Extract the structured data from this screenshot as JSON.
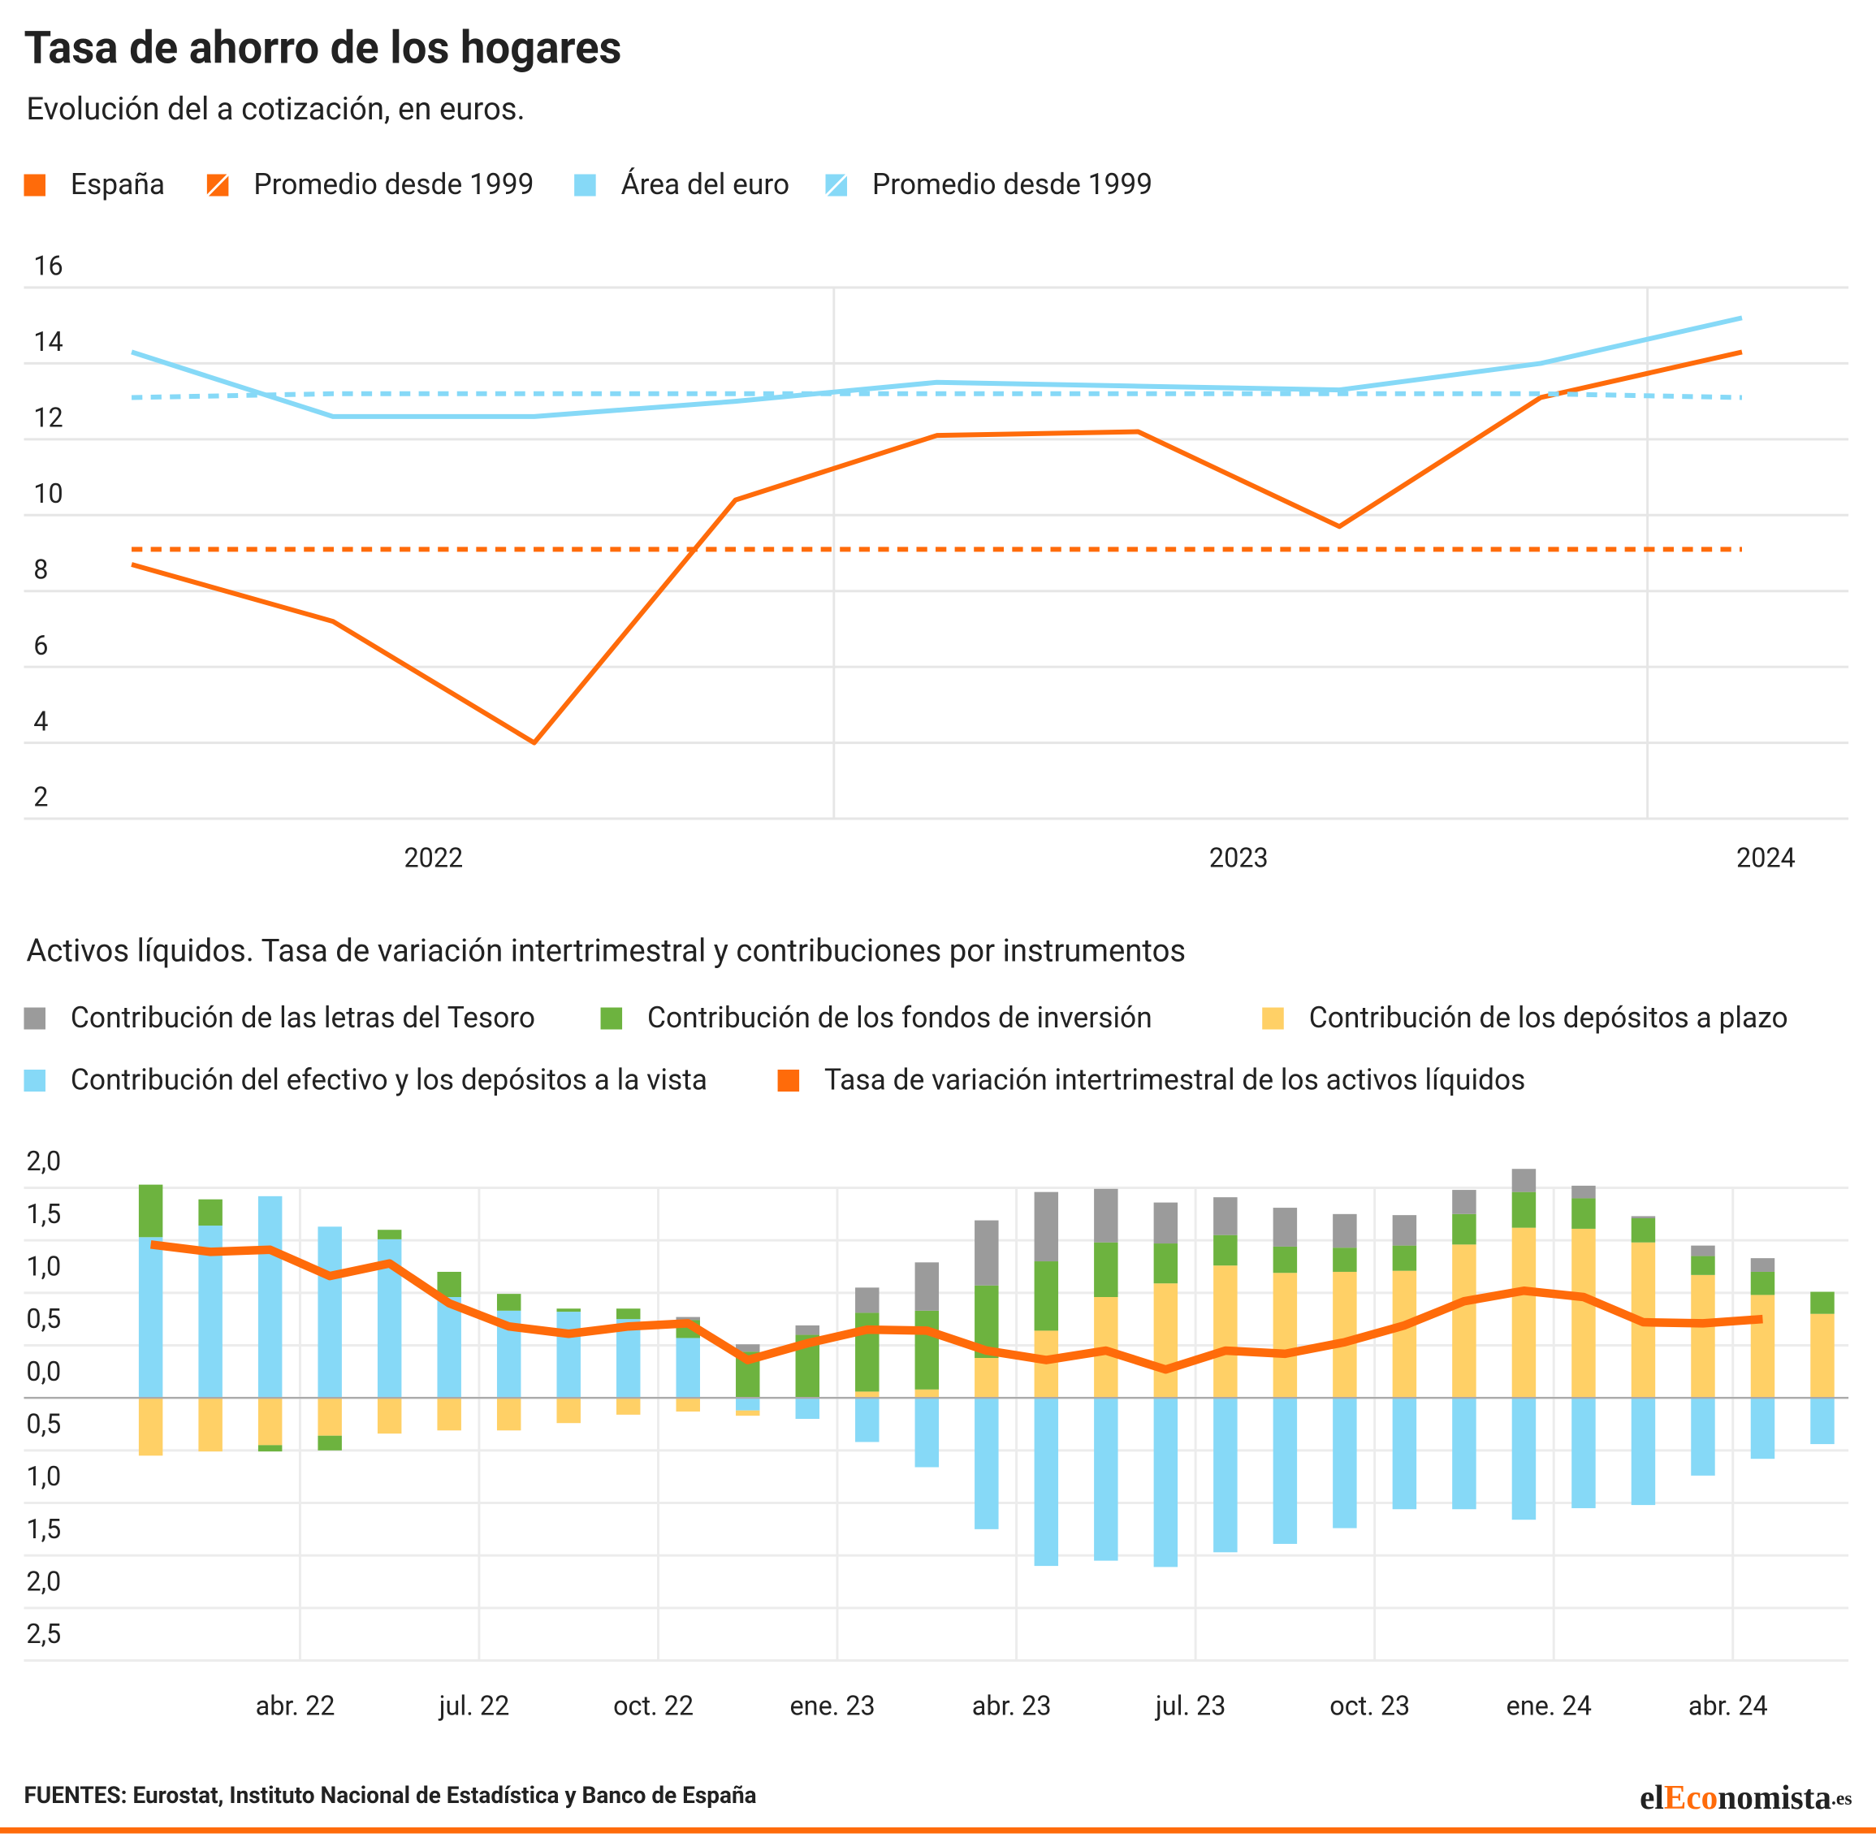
{
  "chart_data": [
    {
      "type": "line",
      "title": "Tasa de ahorro de los hogares",
      "subtitle": "Evolución del a cotización, en euros.",
      "categories": [
        null,
        "2022",
        null,
        null,
        null,
        "2023",
        null,
        null,
        "2024"
      ],
      "ylim": [
        2,
        16
      ],
      "yticks": [
        2,
        4,
        6,
        8,
        10,
        12,
        14,
        16
      ],
      "grid": true,
      "series": [
        {
          "name": "España",
          "color": "#ff6b0a",
          "dashed": false,
          "values": [
            8.7,
            7.2,
            4.0,
            10.4,
            12.1,
            12.2,
            9.7,
            13.1,
            14.3
          ]
        },
        {
          "name": "Promedio desde 1999",
          "color": "#ff6b0a",
          "dashed": true,
          "values": [
            9.1,
            9.1,
            9.1,
            9.1,
            9.1,
            9.1,
            9.1,
            9.1,
            9.1
          ]
        },
        {
          "name": "Área del euro",
          "color": "#86d9f7",
          "dashed": false,
          "values": [
            14.3,
            12.6,
            12.6,
            13.0,
            13.5,
            13.4,
            13.3,
            14.0,
            15.2
          ]
        },
        {
          "name": "Promedio desde 1999",
          "color": "#86d9f7",
          "dashed": true,
          "values": [
            13.1,
            13.2,
            13.2,
            13.2,
            13.2,
            13.2,
            13.2,
            13.2,
            13.1
          ]
        }
      ]
    },
    {
      "type": "bar",
      "stacked": true,
      "title": "Activos líquidos. Tasa de variación intertrimestral y contribuciones por instrumentos",
      "categories": [
        null,
        null,
        null,
        "abr. 22",
        null,
        null,
        "jul. 22",
        null,
        null,
        "oct. 22",
        null,
        null,
        "ene. 23",
        null,
        null,
        "abr. 23",
        null,
        null,
        "jul. 23",
        null,
        null,
        "oct. 23",
        null,
        null,
        "ene. 24",
        null,
        null,
        "abr. 24",
        null
      ],
      "ylim": [
        -2.5,
        2.0
      ],
      "yticks": [
        {
          "value": 2.0,
          "label": "2,0"
        },
        {
          "value": 1.5,
          "label": "1,5"
        },
        {
          "value": 1.0,
          "label": "1,0"
        },
        {
          "value": 0.5,
          "label": "0,5"
        },
        {
          "value": 0,
          "label": "0,0"
        },
        {
          "value": -0.5,
          "label": "0,5"
        },
        {
          "value": -1.0,
          "label": "1,0"
        },
        {
          "value": -1.5,
          "label": "1,5"
        },
        {
          "value": -2.0,
          "label": "2,0"
        },
        {
          "value": -2.5,
          "label": "2,5"
        }
      ],
      "grid": true,
      "series": [
        {
          "name": "Contribución de las letras del Tesoro",
          "type": "bar",
          "color": "#9b9b9b",
          "values": [
            0,
            0,
            0,
            0,
            0,
            0,
            0,
            0,
            0,
            0.03,
            0.07,
            0.09,
            0.24,
            0.46,
            0.62,
            0.66,
            0.51,
            0.39,
            0.36,
            0.37,
            0.32,
            0.29,
            0.23,
            0.22,
            0.12,
            0.02,
            0.1,
            0.13,
            0
          ]
        },
        {
          "name": "Contribución de los fondos de inversión",
          "type": "bar",
          "color": "#6db33f",
          "values": [
            0.5,
            0.25,
            -0.06,
            -0.14,
            0.09,
            0.24,
            0.16,
            0.03,
            0.1,
            0.17,
            0.44,
            0.6,
            0.75,
            0.75,
            0.69,
            0.66,
            0.52,
            0.38,
            0.29,
            0.25,
            0.23,
            0.24,
            0.29,
            0.34,
            0.29,
            0.23,
            0.18,
            0.22,
            0.21
          ]
        },
        {
          "name": "Contribución de los depósitos a plazo",
          "type": "bar",
          "color": "#ffd066",
          "values": [
            -0.55,
            -0.51,
            -0.45,
            -0.36,
            -0.34,
            -0.31,
            -0.31,
            -0.24,
            -0.16,
            -0.13,
            -0.05,
            0,
            0.06,
            0.08,
            0.38,
            0.64,
            0.96,
            1.09,
            1.26,
            1.19,
            1.2,
            1.21,
            1.46,
            1.62,
            1.61,
            1.48,
            1.17,
            0.98,
            0.8
          ]
        },
        {
          "name": "Contribución del efectivo y los depósitos a la vista",
          "type": "bar",
          "color": "#86d9f7",
          "values": [
            1.53,
            1.64,
            1.92,
            1.63,
            1.51,
            0.96,
            0.83,
            0.82,
            0.75,
            0.57,
            -0.12,
            -0.2,
            -0.42,
            -0.66,
            -1.25,
            -1.6,
            -1.55,
            -1.61,
            -1.47,
            -1.39,
            -1.24,
            -1.06,
            -1.06,
            -1.16,
            -1.05,
            -1.02,
            -0.74,
            -0.58,
            -0.44
          ]
        },
        {
          "name": "Tasa de variación intertrimestral de los activos líquidos",
          "type": "line",
          "color": "#ff6b0a",
          "values": [
            1.46,
            1.39,
            1.41,
            1.16,
            1.28,
            0.9,
            0.68,
            0.61,
            0.68,
            0.71,
            0.36,
            0.52,
            0.65,
            0.64,
            0.45,
            0.36,
            0.45,
            0.27,
            0.45,
            0.42,
            0.53,
            0.69,
            0.92,
            1.02,
            0.96,
            0.72,
            0.71,
            0.75,
            null
          ]
        }
      ]
    }
  ],
  "footer": {
    "source": "FUENTES: Eurostat, Instituto Nacional de Estadística y Banco de España",
    "logo": [
      "el",
      "Eco",
      "nomista",
      ".es"
    ]
  }
}
